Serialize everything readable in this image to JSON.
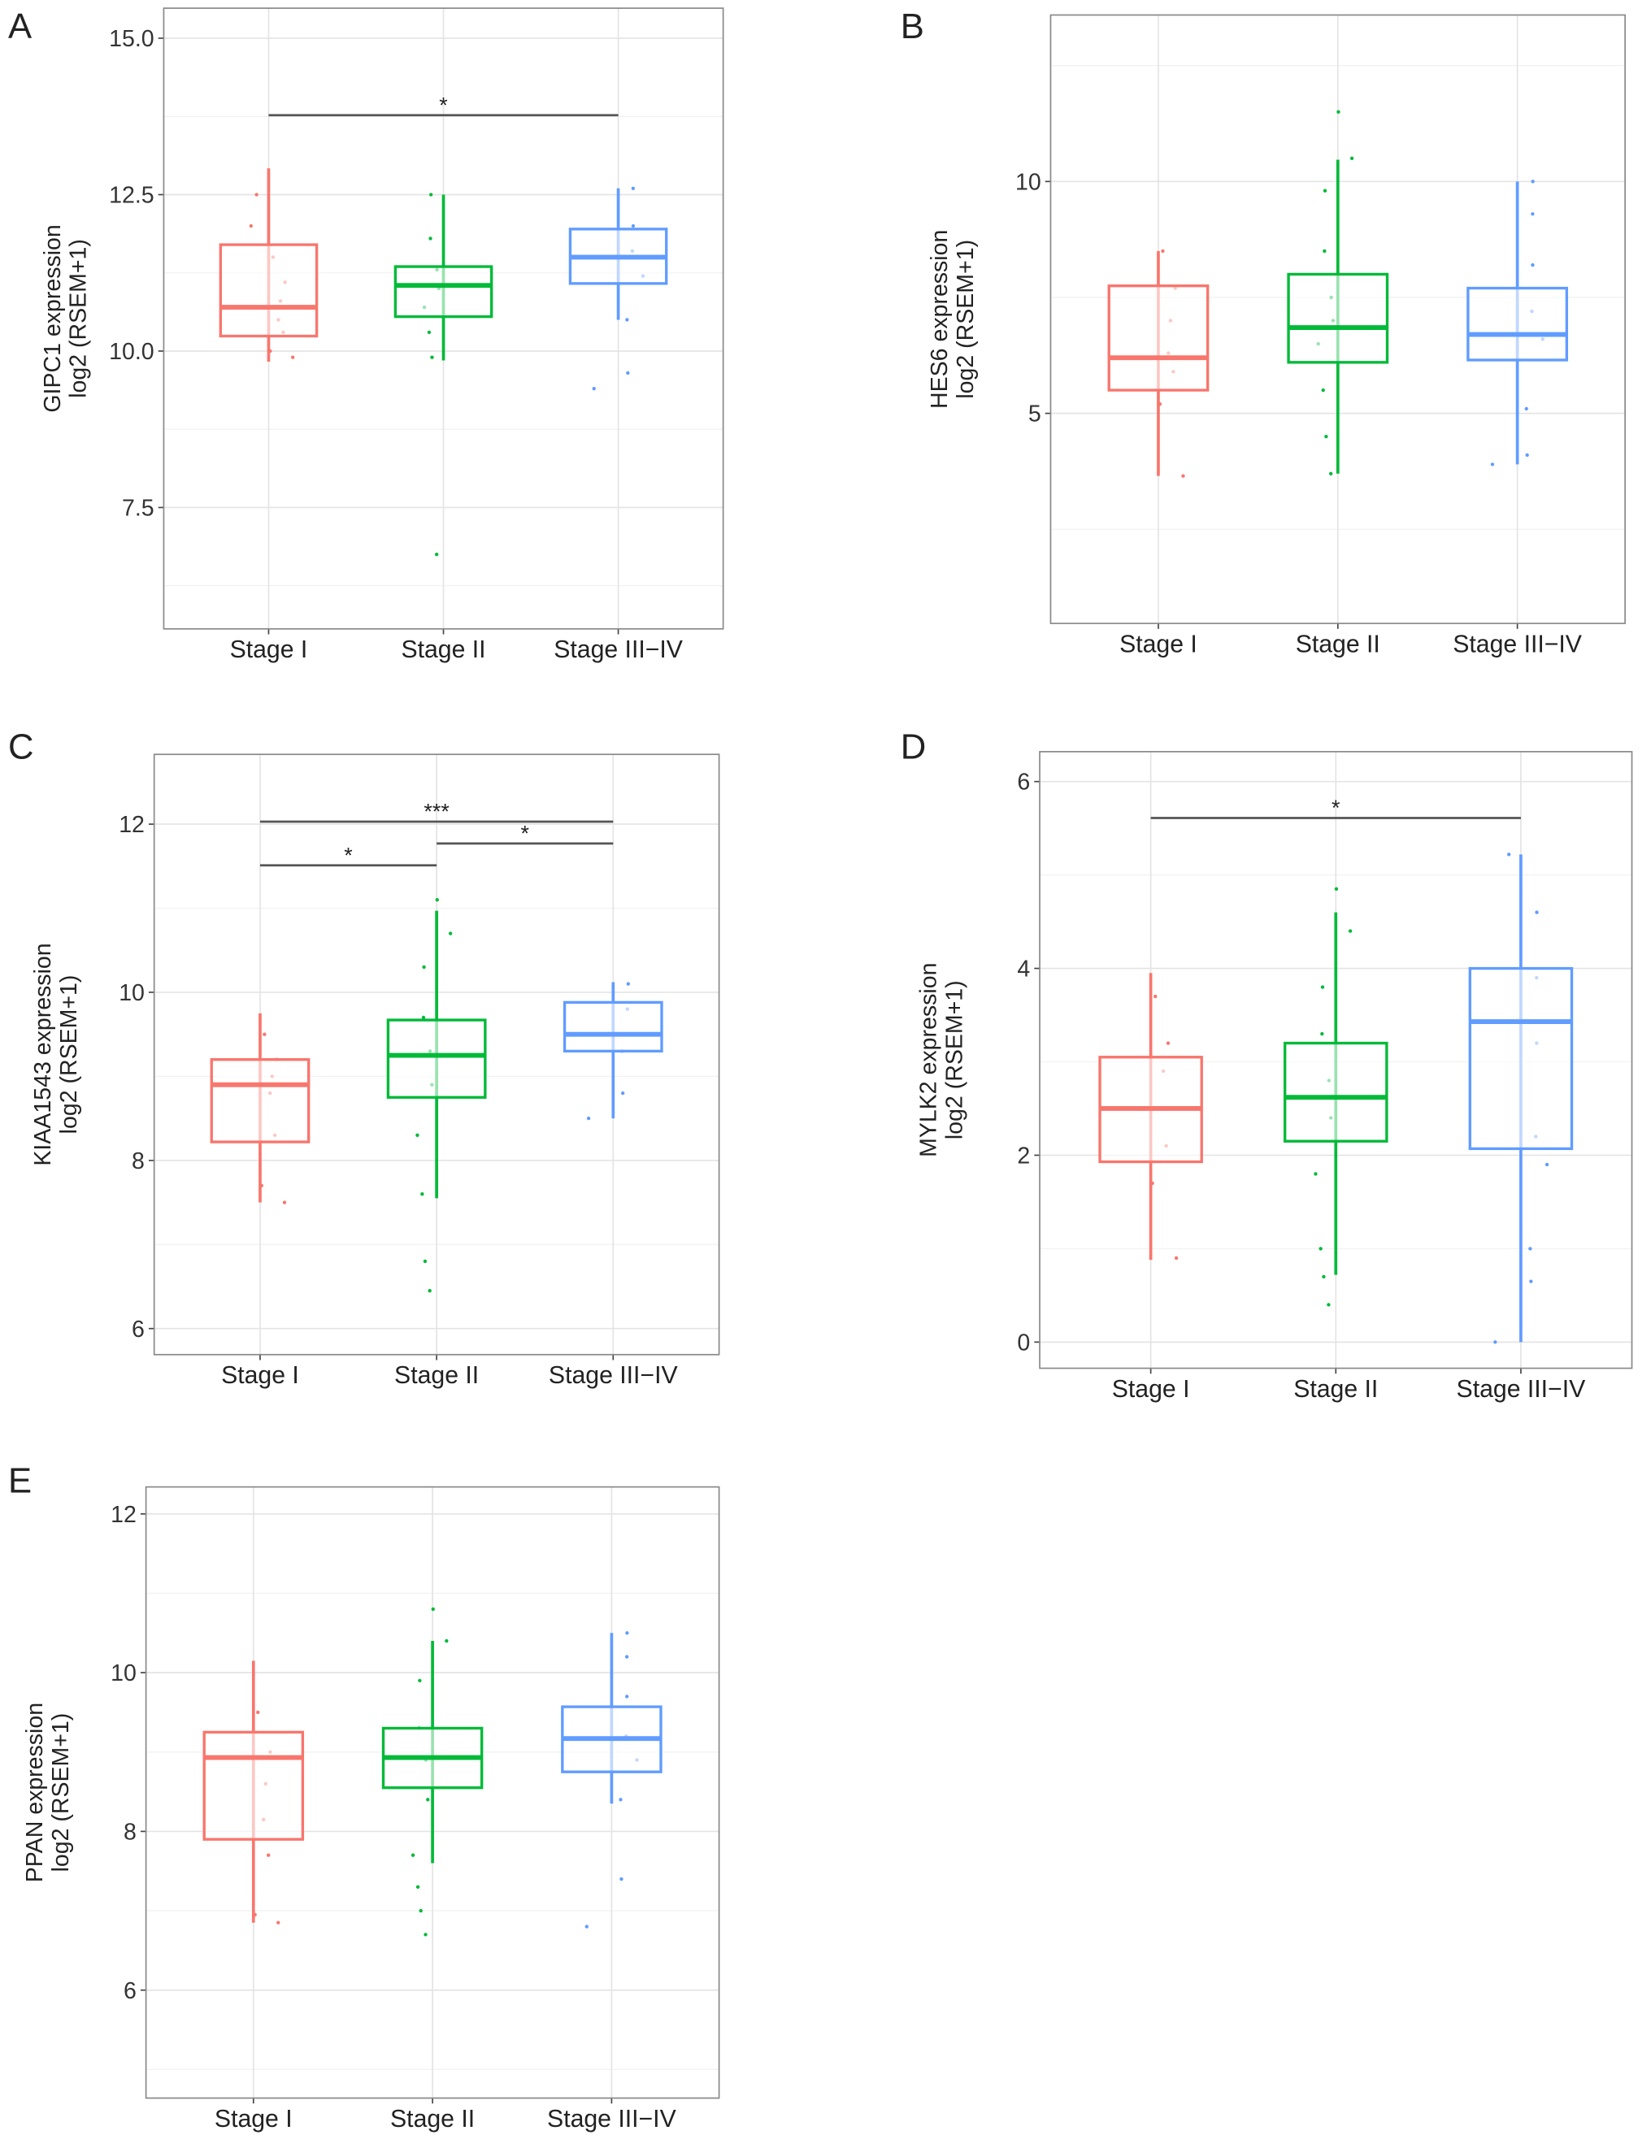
{
  "chart_data": [
    {
      "type": "box",
      "panel": "A",
      "ylabel": [
        "GIPC1 expression",
        "log2 (RSEM+1)"
      ],
      "categories": [
        "Stage I",
        "Stage II",
        "Stage III−IV"
      ],
      "ylim": [
        5.56,
        15.48
      ],
      "yticks": [
        {
          "value": 15,
          "label": "15.0"
        },
        12.5,
        {
          "value": 10,
          "label": "10.0"
        },
        7.5
      ],
      "grid": true,
      "boxes": [
        {
          "color": "#F8766D",
          "whisker_low": 9.83,
          "q1": 10.24,
          "median": 10.7,
          "q3": 11.7,
          "whisker_high": 12.92,
          "points": [
            9.9,
            10.0,
            10.3,
            10.5,
            10.8,
            11.1,
            11.5,
            12.0,
            12.5
          ]
        },
        {
          "color": "#00BA38",
          "whisker_low": 9.85,
          "q1": 10.55,
          "median": 11.05,
          "q3": 11.35,
          "whisker_high": 12.5,
          "points": [
            6.75,
            9.9,
            10.3,
            10.7,
            11.0,
            11.3,
            11.8,
            12.5
          ]
        },
        {
          "color": "#619CFF",
          "whisker_low": 10.5,
          "q1": 11.08,
          "median": 11.5,
          "q3": 11.95,
          "whisker_high": 12.6,
          "points": [
            9.4,
            9.65,
            10.5,
            11.2,
            11.6,
            12.0,
            12.6
          ]
        }
      ],
      "significance": [
        {
          "between": [
            "Stage I",
            "Stage III−IV"
          ],
          "y": 13.77,
          "label": "*"
        }
      ]
    },
    {
      "type": "box",
      "panel": "B",
      "ylabel": [
        "HES6 expression",
        "log2 (RSEM+1)"
      ],
      "categories": [
        "Stage I",
        "Stage II",
        "Stage III−IV"
      ],
      "ylim": [
        0.47,
        13.59
      ],
      "yticks": [
        10,
        5
      ],
      "grid": true,
      "boxes": [
        {
          "color": "#F8766D",
          "whisker_low": 3.65,
          "q1": 5.5,
          "median": 6.2,
          "q3": 7.75,
          "whisker_high": 8.5,
          "points": [
            3.65,
            5.2,
            5.9,
            6.3,
            7.0,
            7.7,
            8.5
          ]
        },
        {
          "color": "#00BA38",
          "whisker_low": 3.7,
          "q1": 6.1,
          "median": 6.85,
          "q3": 8.0,
          "whisker_high": 10.47,
          "points": [
            3.7,
            4.5,
            5.5,
            6.5,
            7.0,
            7.5,
            8.5,
            9.8,
            10.5,
            11.5
          ]
        },
        {
          "color": "#619CFF",
          "whisker_low": 3.9,
          "q1": 6.15,
          "median": 6.7,
          "q3": 7.7,
          "whisker_high": 10.0,
          "points": [
            3.9,
            4.1,
            5.1,
            6.6,
            7.2,
            8.2,
            9.3,
            10.0
          ]
        }
      ],
      "significance": []
    },
    {
      "type": "box",
      "panel": "C",
      "ylabel": [
        "KIAA1543 expression",
        "log2 (RSEM+1)"
      ],
      "categories": [
        "Stage I",
        "Stage II",
        "Stage III−IV"
      ],
      "ylim": [
        5.69,
        12.83
      ],
      "yticks": [
        12,
        10,
        8,
        6
      ],
      "grid": true,
      "boxes": [
        {
          "color": "#F8766D",
          "whisker_low": 7.5,
          "q1": 8.22,
          "median": 8.9,
          "q3": 9.2,
          "whisker_high": 9.75,
          "points": [
            7.5,
            7.7,
            8.3,
            8.8,
            9.0,
            9.2,
            9.5
          ]
        },
        {
          "color": "#00BA38",
          "whisker_low": 7.55,
          "q1": 8.75,
          "median": 9.25,
          "q3": 9.67,
          "whisker_high": 10.97,
          "points": [
            6.45,
            6.8,
            7.6,
            8.3,
            8.9,
            9.3,
            9.7,
            10.3,
            10.7,
            11.1
          ]
        },
        {
          "color": "#619CFF",
          "whisker_low": 8.5,
          "q1": 9.3,
          "median": 9.5,
          "q3": 9.88,
          "whisker_high": 10.12,
          "points": [
            8.5,
            8.8,
            9.3,
            9.5,
            9.8,
            10.1
          ]
        }
      ],
      "significance": [
        {
          "between": [
            "Stage I",
            "Stage III−IV"
          ],
          "y": 12.03,
          "label": "***"
        },
        {
          "between": [
            "Stage I",
            "Stage II"
          ],
          "y": 11.51,
          "label": "*"
        },
        {
          "between": [
            "Stage II",
            "Stage III−IV"
          ],
          "y": 11.77,
          "label": "*"
        }
      ]
    },
    {
      "type": "box",
      "panel": "D",
      "ylabel": [
        "MYLK2 expression",
        "log2 (RSEM+1)"
      ],
      "categories": [
        "Stage I",
        "Stage II",
        "Stage III−IV"
      ],
      "ylim": [
        -0.28,
        6.32
      ],
      "yticks": [
        6,
        4,
        2,
        0
      ],
      "grid": true,
      "boxes": [
        {
          "color": "#F8766D",
          "whisker_low": 0.88,
          "q1": 1.93,
          "median": 2.5,
          "q3": 3.05,
          "whisker_high": 3.95,
          "points": [
            0.9,
            1.7,
            2.1,
            2.5,
            2.9,
            3.2,
            3.7
          ]
        },
        {
          "color": "#00BA38",
          "whisker_low": 0.72,
          "q1": 2.15,
          "median": 2.62,
          "q3": 3.2,
          "whisker_high": 4.6,
          "points": [
            0.4,
            0.7,
            1.0,
            1.8,
            2.4,
            2.8,
            3.3,
            3.8,
            4.4,
            4.85
          ]
        },
        {
          "color": "#619CFF",
          "whisker_low": 0.0,
          "q1": 2.07,
          "median": 3.43,
          "q3": 4.0,
          "whisker_high": 5.22,
          "points": [
            0.0,
            0.65,
            1.0,
            1.9,
            2.2,
            3.2,
            3.9,
            4.6,
            5.22
          ]
        }
      ],
      "significance": [
        {
          "between": [
            "Stage I",
            "Stage III−IV"
          ],
          "y": 5.61,
          "label": "*"
        }
      ]
    },
    {
      "type": "box",
      "panel": "E",
      "ylabel": [
        "PPAN expression",
        "log2 (RSEM+1)"
      ],
      "categories": [
        "Stage I",
        "Stage II",
        "Stage III−IV"
      ],
      "ylim": [
        4.64,
        12.34
      ],
      "yticks": [
        12,
        10,
        8,
        6
      ],
      "grid": true,
      "boxes": [
        {
          "color": "#F8766D",
          "whisker_low": 6.85,
          "q1": 7.9,
          "median": 8.93,
          "q3": 9.25,
          "whisker_high": 10.15,
          "points": [
            6.85,
            6.95,
            7.7,
            8.15,
            8.6,
            9.0,
            9.5
          ]
        },
        {
          "color": "#00BA38",
          "whisker_low": 7.6,
          "q1": 8.55,
          "median": 8.93,
          "q3": 9.3,
          "whisker_high": 10.4,
          "points": [
            6.7,
            7.0,
            7.3,
            7.7,
            8.4,
            8.9,
            9.3,
            9.9,
            10.4,
            10.8
          ]
        },
        {
          "color": "#619CFF",
          "whisker_low": 8.35,
          "q1": 8.75,
          "median": 9.17,
          "q3": 9.57,
          "whisker_high": 10.5,
          "points": [
            6.8,
            7.4,
            8.4,
            8.9,
            9.2,
            9.7,
            10.2,
            10.5
          ]
        }
      ],
      "significance": []
    }
  ]
}
